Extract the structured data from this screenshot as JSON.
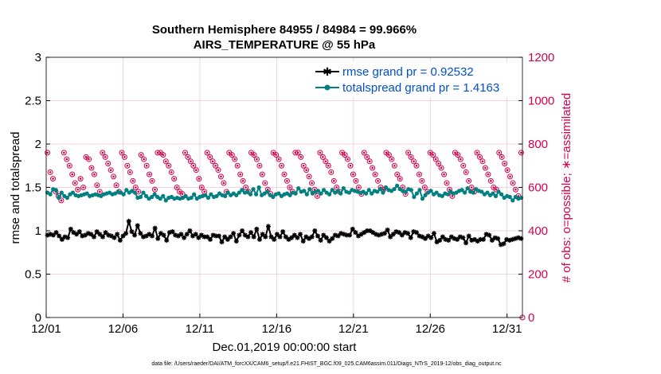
{
  "chart_data": {
    "type": "line",
    "title": "Southern Hemisphere 84955 / 84984 = 99.966%",
    "subtitle": "AIRS_TEMPERATURE @ 55 hPa",
    "xlabel": "Dec.01,2019 00:00:00 start",
    "ylabel": "rmse and totalspread",
    "ylabel_right": "# of obs: o=possible; ∗=assimilated",
    "footnote": "data file: /Users/raeder/DAI/ATM_forcXX/CAM6_setup/f.e21.FHIST_BGC.f09_025.CAM6assim.011/Diags_NTrS_2019-12/obs_diag_output.nc",
    "xlim": [
      1,
      32
    ],
    "ylim": [
      0,
      3
    ],
    "ylim_right": [
      0,
      1200
    ],
    "x_ticks": [
      1,
      6,
      11,
      16,
      21,
      26,
      31
    ],
    "x_tick_labels": [
      "12/01",
      "12/06",
      "12/11",
      "12/16",
      "12/21",
      "12/26",
      "12/31"
    ],
    "y_ticks": [
      0,
      0.5,
      1,
      1.5,
      2,
      2.5,
      3
    ],
    "y_tick_labels": [
      "0",
      "0.5",
      "1",
      "1.5",
      "2",
      "2.5",
      "3"
    ],
    "y_ticks_right": [
      0,
      200,
      400,
      600,
      800,
      1000,
      1200
    ],
    "y_tick_labels_right": [
      "0",
      "200",
      "400",
      "600",
      "800",
      "1000",
      "1200"
    ],
    "grid": true,
    "legend_position": "top-right",
    "colors": {
      "rmse": "#000000",
      "totalspread": "#008080",
      "obs": "#d6004c",
      "legend_text": "#0050d0",
      "grid": "#f0c8d4"
    },
    "series": [
      {
        "name": "rmse grand pr = 0.92532",
        "color": "#000000",
        "values": [
          0.95,
          0.96,
          0.95,
          0.98,
          0.94,
          0.9,
          0.93,
          0.92,
          1.02,
          0.98,
          0.96,
          0.99,
          0.94,
          0.95,
          0.97,
          0.96,
          0.93,
          0.99,
          0.96,
          0.93,
          0.98,
          0.95,
          0.94,
          0.92,
          0.96,
          0.89,
          0.94,
          0.97,
          1.11,
          0.99,
          0.95,
          1.06,
          0.97,
          0.93,
          0.94,
          0.96,
          0.94,
          1.03,
          0.91,
          0.97,
          0.95,
          0.89,
          0.98,
          0.99,
          0.95,
          0.94,
          0.96,
          0.92,
          0.96,
          1.0,
          0.94,
          0.96,
          0.92,
          0.95,
          0.93,
          0.93,
          0.9,
          0.95,
          0.94,
          0.94,
          0.87,
          0.93,
          0.9,
          0.93,
          0.97,
          0.88,
          0.95,
          1.0,
          0.95,
          0.93,
          0.98,
          0.93,
          1.02,
          0.9,
          0.96,
          0.93,
          1.05,
          0.93,
          0.9,
          0.96,
          0.93,
          0.99,
          0.93,
          0.9,
          0.92,
          0.95,
          0.92,
          0.96,
          0.88,
          0.93,
          0.91,
          0.93,
          1.0,
          0.94,
          0.89,
          0.95,
          0.92,
          0.88,
          0.91,
          0.95,
          0.94,
          0.97,
          0.96,
          0.95,
          0.95,
          1.02,
          0.98,
          0.94,
          0.96,
          0.98,
          1.0,
          1.0,
          0.98,
          0.96,
          0.95,
          0.96,
          0.97,
          1.01,
          0.93,
          0.96,
          0.99,
          0.98,
          0.95,
          0.98,
          0.97,
          0.92,
          0.99,
          0.98,
          0.94,
          0.93,
          0.91,
          0.94,
          0.92,
          0.97,
          0.87,
          0.89,
          0.93,
          0.9,
          0.89,
          0.93,
          0.91,
          0.9,
          0.93,
          0.92,
          0.86,
          0.94,
          0.89,
          0.9,
          0.88,
          0.9,
          0.9,
          0.96,
          0.95,
          0.89,
          0.92,
          0.91,
          0.84,
          0.85,
          0.9,
          0.89,
          0.9,
          0.91,
          0.92,
          0.91
        ]
      },
      {
        "name": "totalspread grand pr = 1.4163",
        "color": "#008080",
        "values": [
          1.44,
          1.42,
          1.48,
          1.47,
          1.38,
          1.44,
          1.4,
          1.38,
          1.42,
          1.44,
          1.41,
          1.4,
          1.41,
          1.42,
          1.43,
          1.4,
          1.41,
          1.42,
          1.41,
          1.4,
          1.42,
          1.43,
          1.44,
          1.42,
          1.43,
          1.45,
          1.44,
          1.42,
          1.47,
          1.44,
          1.46,
          1.44,
          1.38,
          1.39,
          1.44,
          1.4,
          1.37,
          1.39,
          1.42,
          1.39,
          1.37,
          1.4,
          1.35,
          1.38,
          1.39,
          1.37,
          1.38,
          1.37,
          1.38,
          1.4,
          1.37,
          1.38,
          1.42,
          1.37,
          1.39,
          1.4,
          1.41,
          1.38,
          1.42,
          1.39,
          1.4,
          1.43,
          1.41,
          1.4,
          1.44,
          1.41,
          1.43,
          1.41,
          1.44,
          1.47,
          1.44,
          1.45,
          1.42,
          1.48,
          1.42,
          1.5,
          1.41,
          1.43,
          1.45,
          1.41,
          1.39,
          1.42,
          1.43,
          1.4,
          1.42,
          1.43,
          1.41,
          1.44,
          1.43,
          1.49,
          1.45,
          1.46,
          1.42,
          1.48,
          1.43,
          1.45,
          1.46,
          1.43,
          1.47,
          1.44,
          1.42,
          1.47,
          1.44,
          1.46,
          1.43,
          1.49,
          1.45,
          1.44,
          1.47,
          1.46,
          1.45,
          1.44,
          1.45,
          1.43,
          1.47,
          1.43,
          1.46,
          1.45,
          1.48,
          1.44,
          1.5,
          1.47,
          1.46,
          1.48,
          1.52,
          1.48,
          1.46,
          1.45,
          1.48,
          1.47,
          1.39,
          1.43,
          1.47,
          1.37,
          1.41,
          1.44,
          1.46,
          1.42,
          1.44,
          1.41,
          1.4,
          1.43,
          1.42,
          1.45,
          1.43,
          1.44,
          1.46,
          1.47,
          1.44,
          1.49,
          1.45,
          1.44,
          1.48,
          1.46,
          1.45,
          1.42,
          1.44,
          1.41,
          1.43,
          1.4,
          1.45,
          1.42,
          1.38,
          1.4,
          1.39,
          1.35,
          1.39,
          1.37,
          1.38
        ]
      },
      {
        "name": "obs possible / assimilated",
        "axis": "right",
        "color": "#d6004c",
        "values": [
          760,
          670,
          640,
          580,
          560,
          540,
          760,
          730,
          700,
          660,
          620,
          590,
          640,
          600,
          740,
          730,
          690,
          660,
          610,
          580,
          760,
          740,
          710,
          680,
          650,
          610,
          580,
          760,
          740,
          700,
          670,
          630,
          600,
          580,
          750,
          730,
          700,
          660,
          630,
          590,
          760,
          760,
          750,
          720,
          700,
          670,
          640,
          600,
          580,
          570,
          760,
          740,
          720,
          700,
          680,
          640,
          600,
          580,
          760,
          740,
          720,
          700,
          680,
          650,
          620,
          580,
          760,
          750,
          730,
          700,
          660,
          630,
          600,
          580,
          760,
          750,
          730,
          700,
          660,
          620,
          590,
          570,
          760,
          750,
          730,
          700,
          660,
          630,
          600,
          580,
          760,
          760,
          740,
          700,
          680,
          650,
          620,
          590,
          560,
          760,
          740,
          720,
          700,
          670,
          630,
          600,
          580,
          760,
          750,
          730,
          700,
          660,
          630,
          600,
          570,
          760,
          740,
          720,
          690,
          660,
          630,
          600,
          590,
          760,
          750,
          730,
          700,
          660,
          640,
          600,
          570,
          760,
          740,
          720,
          700,
          660,
          630,
          600,
          580,
          760,
          750,
          730,
          710,
          690,
          660,
          620,
          590,
          560,
          760,
          750,
          730,
          700,
          670,
          630,
          600,
          580,
          760,
          740,
          720,
          690,
          660,
          630,
          600,
          590,
          760,
          740,
          710,
          680,
          650,
          620,
          590,
          560,
          760
        ]
      }
    ]
  }
}
